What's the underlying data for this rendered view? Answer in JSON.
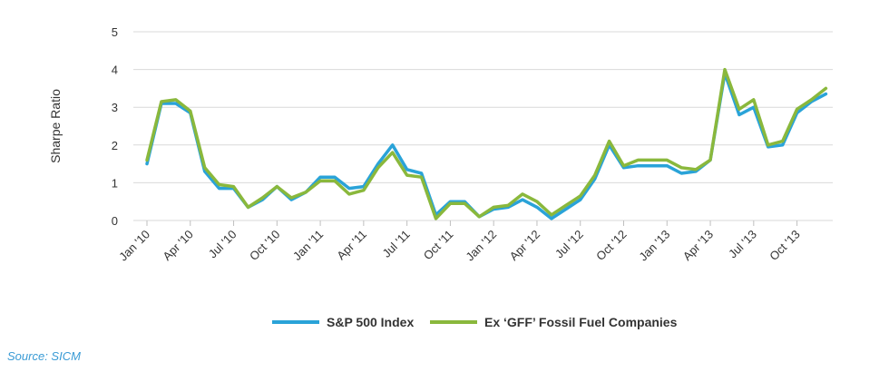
{
  "chart_data": {
    "type": "line",
    "ylabel": "Sharpe Ratio",
    "ylim": [
      0,
      5
    ],
    "y_ticks": [
      "0",
      "1",
      "2",
      "3",
      "4",
      "5"
    ],
    "x_tick_labels": [
      "Jan '10",
      "Apr '10",
      "Jul '10",
      "Oct '10",
      "Jan '11",
      "Apr '11",
      "Jul '11",
      "Oct '11",
      "Jan '12",
      "Apr '12",
      "Jul '12",
      "Oct '12",
      "Jan '13",
      "Apr '13",
      "Jul '13",
      "Oct '13"
    ],
    "grid": true,
    "legend": "bottom",
    "series": [
      {
        "name": "S&P 500 Index",
        "color": "#2aa3d8",
        "values": [
          1.5,
          3.1,
          3.1,
          2.85,
          1.3,
          0.85,
          0.85,
          0.35,
          0.55,
          0.9,
          0.55,
          0.75,
          1.15,
          1.15,
          0.85,
          0.9,
          1.5,
          2.0,
          1.35,
          1.25,
          0.15,
          0.5,
          0.5,
          0.1,
          0.3,
          0.35,
          0.55,
          0.35,
          0.05,
          0.3,
          0.55,
          1.1,
          2.0,
          1.4,
          1.45,
          1.45,
          1.45,
          1.25,
          1.3,
          1.6,
          3.9,
          2.8,
          3.0,
          1.95,
          2.0,
          2.85,
          3.15,
          3.35
        ]
      },
      {
        "name": "Ex ‘GFF’ Fossil Fuel  Companies",
        "color": "#8ab83c",
        "values": [
          1.6,
          3.15,
          3.2,
          2.9,
          1.4,
          0.95,
          0.9,
          0.35,
          0.6,
          0.9,
          0.6,
          0.75,
          1.05,
          1.05,
          0.7,
          0.8,
          1.4,
          1.8,
          1.2,
          1.15,
          0.05,
          0.45,
          0.45,
          0.1,
          0.35,
          0.4,
          0.7,
          0.5,
          0.15,
          0.4,
          0.65,
          1.2,
          2.1,
          1.45,
          1.6,
          1.6,
          1.6,
          1.4,
          1.35,
          1.6,
          4.0,
          2.95,
          3.2,
          2.0,
          2.1,
          2.95,
          3.2,
          3.5
        ]
      }
    ]
  },
  "source": "Source: SICM"
}
